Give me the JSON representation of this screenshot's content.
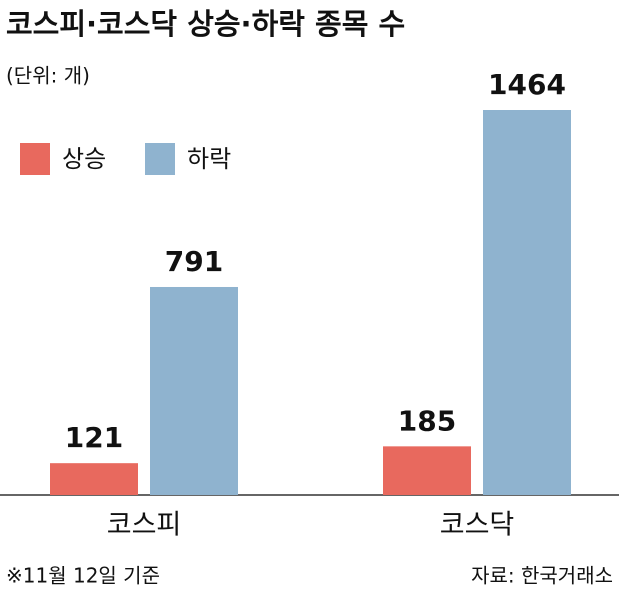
{
  "chart_data": {
    "type": "bar",
    "title": "코스피·코스닥 상승·하락 종목 수",
    "subtitle": "(단위: 개)",
    "categories": [
      "코스피",
      "코스닥"
    ],
    "series": [
      {
        "name": "상승",
        "color": "#e8695e",
        "values": [
          121,
          185
        ]
      },
      {
        "name": "하락",
        "color": "#8fb3cf",
        "values": [
          791,
          1464
        ]
      }
    ],
    "ylim": [
      0,
      1464
    ],
    "note": "※11월 12일 기준",
    "source": "자료: 한국거래소"
  }
}
